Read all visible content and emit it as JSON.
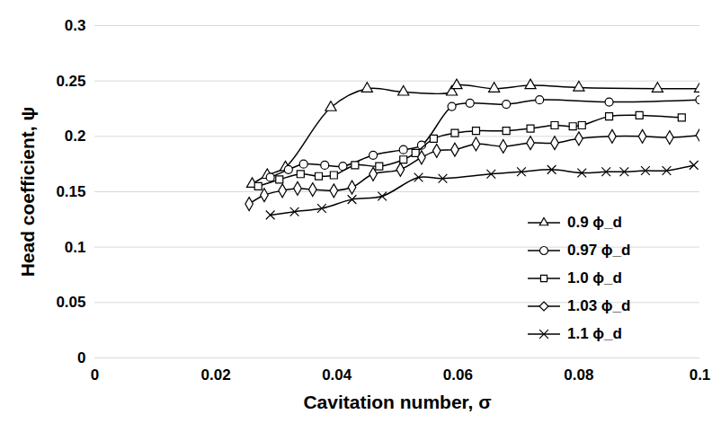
{
  "chart_data": {
    "type": "line",
    "x_label": "Cavitation number, σ",
    "y_label": "Head coefficient, ψ",
    "xlim": [
      0,
      0.1
    ],
    "xticks": [
      0,
      0.02,
      0.04,
      0.06,
      0.08,
      0.1
    ],
    "ylim": [
      0,
      0.3
    ],
    "yticks": [
      0,
      0.05,
      0.1,
      0.15,
      0.2,
      0.25,
      0.3
    ],
    "grid": "y",
    "legend": "lower right",
    "series": [
      {
        "name": "0.9 ϕ_d",
        "color": "#000000",
        "marker": "triangle",
        "line_style": "solid",
        "x": [
          0.026,
          0.0285,
          0.0315,
          0.039,
          0.045,
          0.051,
          0.059,
          0.0598,
          0.066,
          0.072,
          0.08,
          0.093,
          0.1
        ],
        "values": [
          0.157,
          0.165,
          0.172,
          0.226,
          0.243,
          0.24,
          0.24,
          0.246,
          0.243,
          0.246,
          0.244,
          0.243,
          0.243
        ]
      },
      {
        "name": "0.97 ϕ_d",
        "color": "#000000",
        "marker": "circle",
        "line_style": "solid",
        "x": [
          0.029,
          0.032,
          0.0345,
          0.038,
          0.041,
          0.046,
          0.051,
          0.054,
          0.059,
          0.062,
          0.068,
          0.0735,
          0.085,
          0.1
        ],
        "values": [
          0.163,
          0.17,
          0.175,
          0.174,
          0.173,
          0.183,
          0.188,
          0.192,
          0.227,
          0.23,
          0.229,
          0.233,
          0.231,
          0.233
        ]
      },
      {
        "name": "1.0 ϕ_d",
        "color": "#000000",
        "marker": "square",
        "line_style": "solid",
        "x": [
          0.027,
          0.0305,
          0.034,
          0.037,
          0.0395,
          0.043,
          0.047,
          0.051,
          0.053,
          0.056,
          0.0595,
          0.063,
          0.068,
          0.072,
          0.076,
          0.079,
          0.0805,
          0.085,
          0.09,
          0.097
        ],
        "values": [
          0.155,
          0.161,
          0.166,
          0.164,
          0.165,
          0.174,
          0.173,
          0.179,
          0.185,
          0.198,
          0.203,
          0.205,
          0.205,
          0.207,
          0.21,
          0.209,
          0.21,
          0.218,
          0.219,
          0.217
        ]
      },
      {
        "name": "1.03 ϕ_d",
        "color": "#000000",
        "marker": "diamond",
        "line_style": "solid",
        "x": [
          0.0255,
          0.028,
          0.031,
          0.0335,
          0.036,
          0.0395,
          0.0425,
          0.046,
          0.0505,
          0.054,
          0.0565,
          0.0595,
          0.063,
          0.0675,
          0.072,
          0.076,
          0.08,
          0.0855,
          0.0905,
          0.095,
          0.1
        ],
        "values": [
          0.139,
          0.147,
          0.151,
          0.153,
          0.152,
          0.151,
          0.154,
          0.166,
          0.17,
          0.181,
          0.187,
          0.188,
          0.193,
          0.191,
          0.194,
          0.194,
          0.198,
          0.2,
          0.2,
          0.199,
          0.201
        ]
      },
      {
        "name": "1.1 ϕ_d",
        "color": "#000000",
        "marker": "x",
        "line_style": "solid",
        "x": [
          0.029,
          0.033,
          0.0375,
          0.0425,
          0.0475,
          0.0535,
          0.0575,
          0.0655,
          0.0705,
          0.0755,
          0.0805,
          0.0845,
          0.0875,
          0.091,
          0.0945,
          0.099
        ],
        "values": [
          0.129,
          0.132,
          0.135,
          0.143,
          0.146,
          0.163,
          0.162,
          0.166,
          0.168,
          0.17,
          0.167,
          0.168,
          0.168,
          0.169,
          0.169,
          0.174
        ]
      }
    ]
  }
}
